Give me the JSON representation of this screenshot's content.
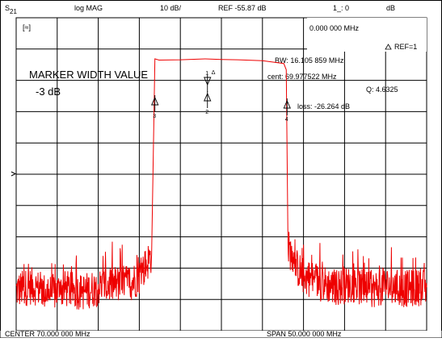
{
  "header": {
    "param_main": "S",
    "param_sub": "21",
    "format": "log MAG",
    "scale": "10 dB/",
    "ref": "REF -55.87 dB",
    "marker_readout": "1_: 0",
    "marker_unit": "dB"
  },
  "annotations": {
    "corner_box": "[≈]",
    "marker_freq": "0.000 000 MHz",
    "ref_label": "REF=1",
    "bw": "BW:  16.105 859 MHz",
    "cent": "cent:  69.977522 MHz",
    "q": "Q: 4.6325",
    "loss": "loss: -26.264 dB",
    "width_title": "MARKER WIDTH VALUE",
    "width_value": "-3 dB"
  },
  "footer": {
    "center": "CENTER  70.000 000 MHz",
    "span": "SPAN  50.000 000 MHz"
  },
  "markers": [
    {
      "label": "1",
      "x": 68.3,
      "kind": "delta"
    },
    {
      "label": "2",
      "x": 68.3,
      "kind": "normal"
    },
    {
      "label": "3",
      "x": 61.9,
      "kind": "normal"
    },
    {
      "label": "4",
      "x": 78.0,
      "kind": "normal"
    }
  ],
  "chart_data": {
    "type": "line",
    "title": "",
    "xlabel": "",
    "ylabel": "",
    "xlim": [
      45,
      95
    ],
    "ylim": [
      -145.87,
      -45.87
    ],
    "grid": true,
    "colors": {
      "trace": "#ee0000",
      "grid": "#000000"
    },
    "series": [
      {
        "x": [
          45.0,
          47.0,
          49.0,
          51.0,
          53.0,
          55.0,
          57.0,
          59.0,
          60.0,
          61.0,
          61.5,
          61.9,
          62.4,
          65.0,
          68.0,
          70.0,
          72.0,
          75.0,
          77.6,
          77.9,
          78.1,
          78.6,
          79.0,
          80.0,
          82.0,
          84.0,
          86.0,
          88.0,
          90.0,
          92.0,
          95.0
        ],
        "values": [
          -133.0,
          -131.5,
          -134.0,
          -132.5,
          -133.5,
          -132.0,
          -131.0,
          -130.5,
          -128.5,
          -124.0,
          -121.5,
          -59.0,
          -59.4,
          -59.3,
          -59.0,
          -59.2,
          -59.3,
          -59.6,
          -60.5,
          -62.5,
          -119.0,
          -122.0,
          -125.0,
          -128.5,
          -130.5,
          -132.0,
          -131.0,
          -133.0,
          -131.5,
          -132.5,
          -132.0
        ]
      }
    ]
  }
}
